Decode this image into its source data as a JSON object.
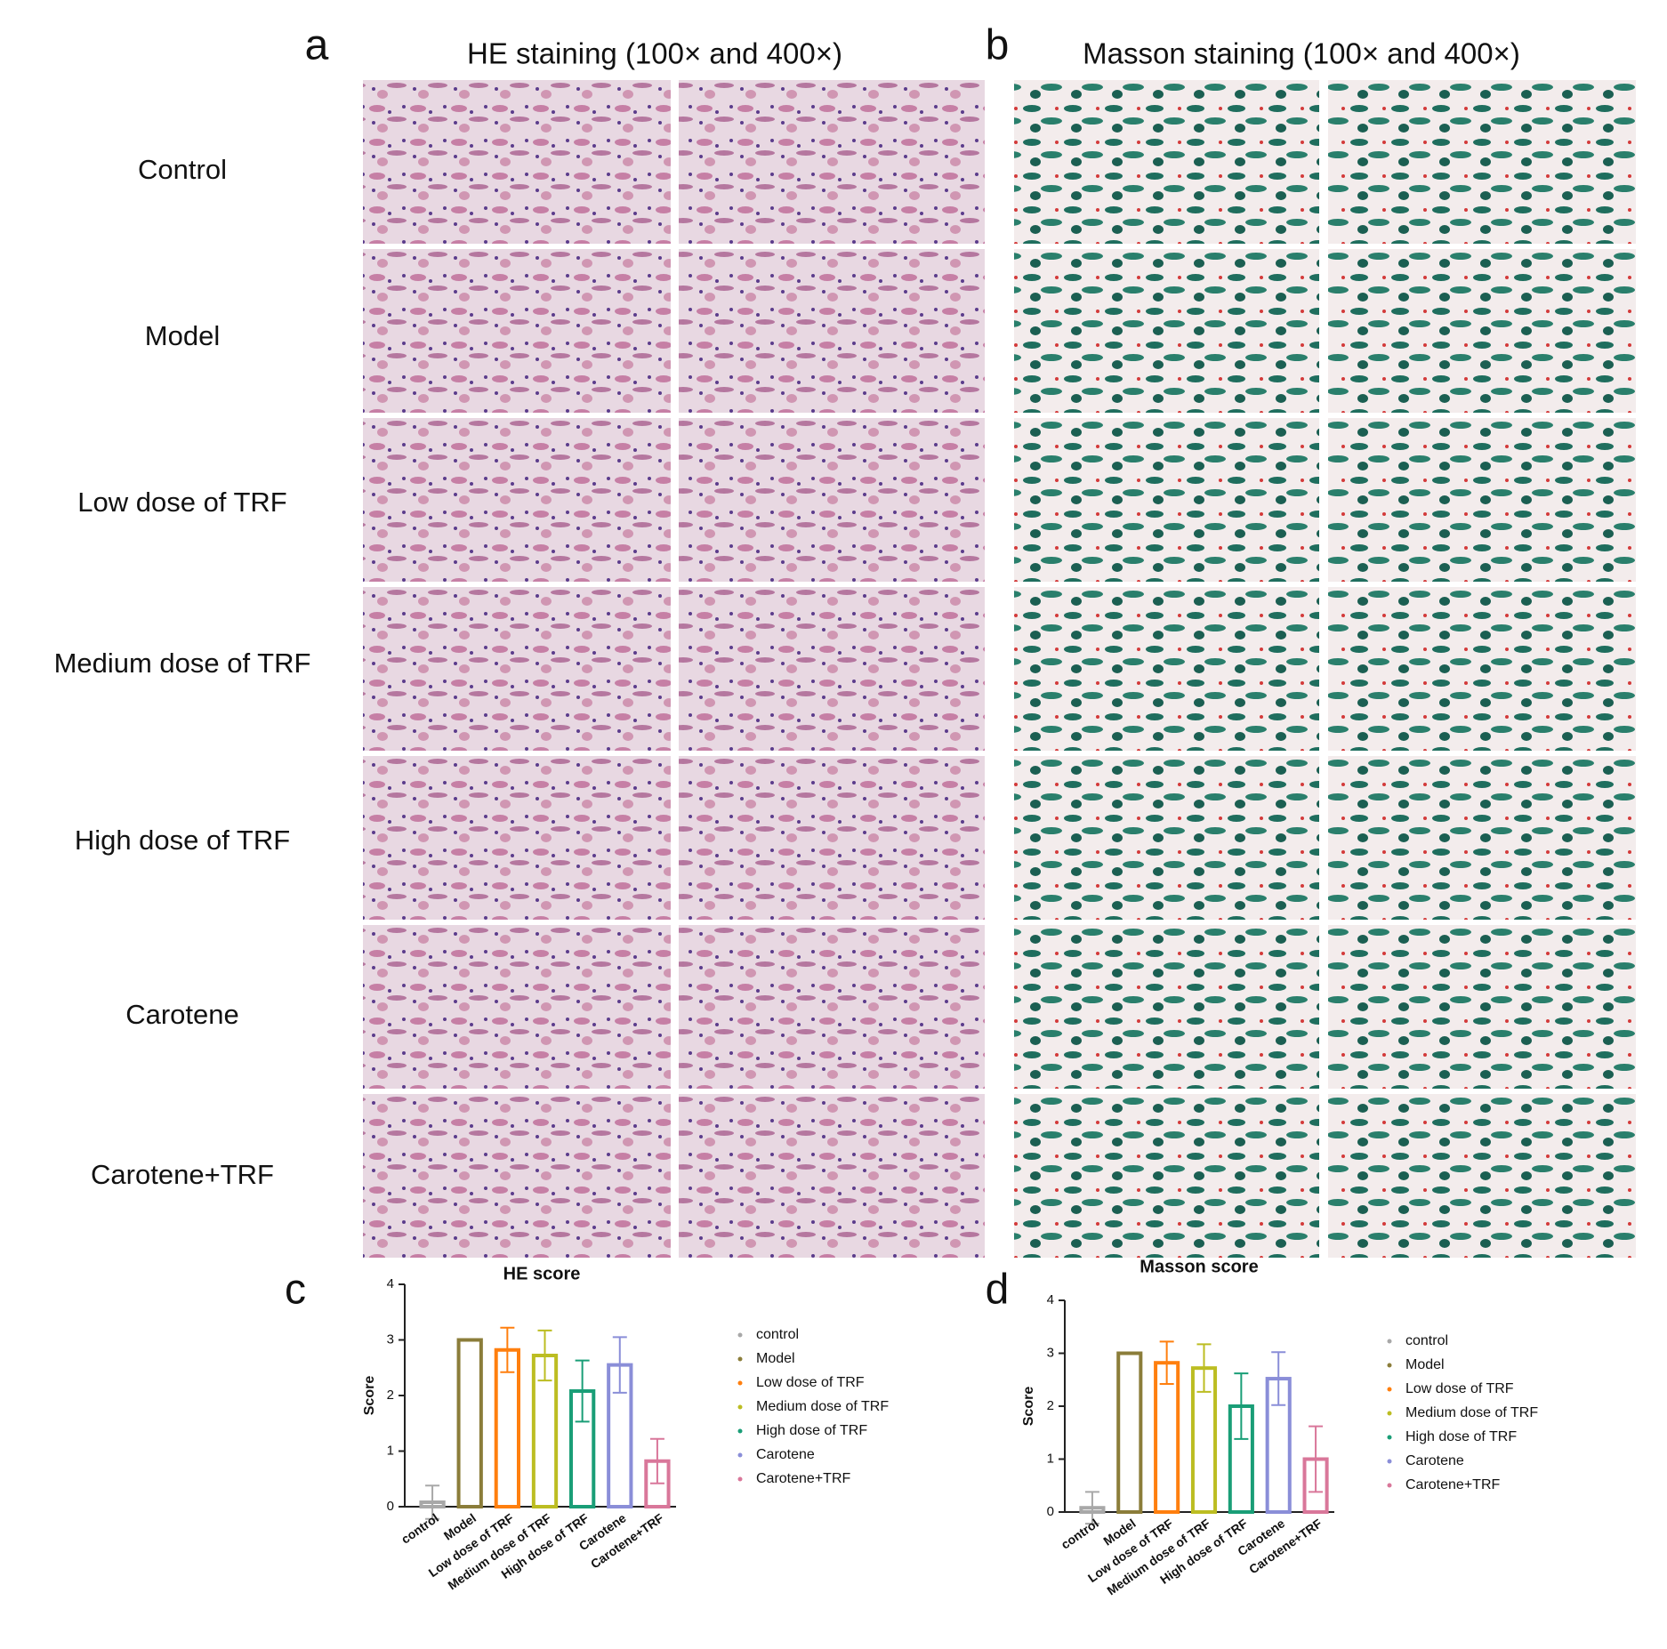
{
  "panel_labels": [
    "a",
    "b",
    "c",
    "d"
  ],
  "he_title": "HE staining (100× and 400×)",
  "masson_title": "Masson staining (100× and 400×)",
  "row_labels": [
    "Control",
    "Model",
    "Low dose of TRF",
    "Medium dose of TRF",
    "High dose of TRF",
    "Carotene",
    "Carotene+TRF"
  ],
  "chart_data": [
    {
      "type": "bar",
      "title": "HE score",
      "y_label": "Score",
      "categories": [
        "control",
        "Model",
        "Low dose of TRF",
        "Medium dose of TRF",
        "High dose of TRF",
        "Carotene",
        "Carotene+TRF"
      ],
      "values": [
        0.08,
        3.0,
        2.82,
        2.72,
        2.08,
        2.55,
        0.82
      ],
      "errors": [
        0.3,
        0,
        0.4,
        0.45,
        0.55,
        0.5,
        0.4
      ],
      "colors": [
        "#a8a8a8",
        "#8b7d3a",
        "#ff7f0e",
        "#bcbd22",
        "#1a9e77",
        "#8a8ed8",
        "#d9779a"
      ],
      "ylim": [
        0,
        4
      ],
      "yticks": [
        0,
        1,
        2,
        3,
        4
      ]
    },
    {
      "type": "bar",
      "title": "Masson score",
      "y_label": "Score",
      "categories": [
        "control",
        "Model",
        "Low dose of TRF",
        "Medium dose of TRF",
        "High dose of TRF",
        "Carotene",
        "Carotene+TRF"
      ],
      "values": [
        0.08,
        3.0,
        2.82,
        2.72,
        2.0,
        2.52,
        1.0
      ],
      "errors": [
        0.3,
        0,
        0.4,
        0.45,
        0.62,
        0.5,
        0.62
      ],
      "colors": [
        "#a8a8a8",
        "#8b7d3a",
        "#ff7f0e",
        "#bcbd22",
        "#1a9e77",
        "#8a8ed8",
        "#d9779a"
      ],
      "ylim": [
        0,
        4
      ],
      "yticks": [
        0,
        1,
        2,
        3,
        4
      ]
    }
  ]
}
